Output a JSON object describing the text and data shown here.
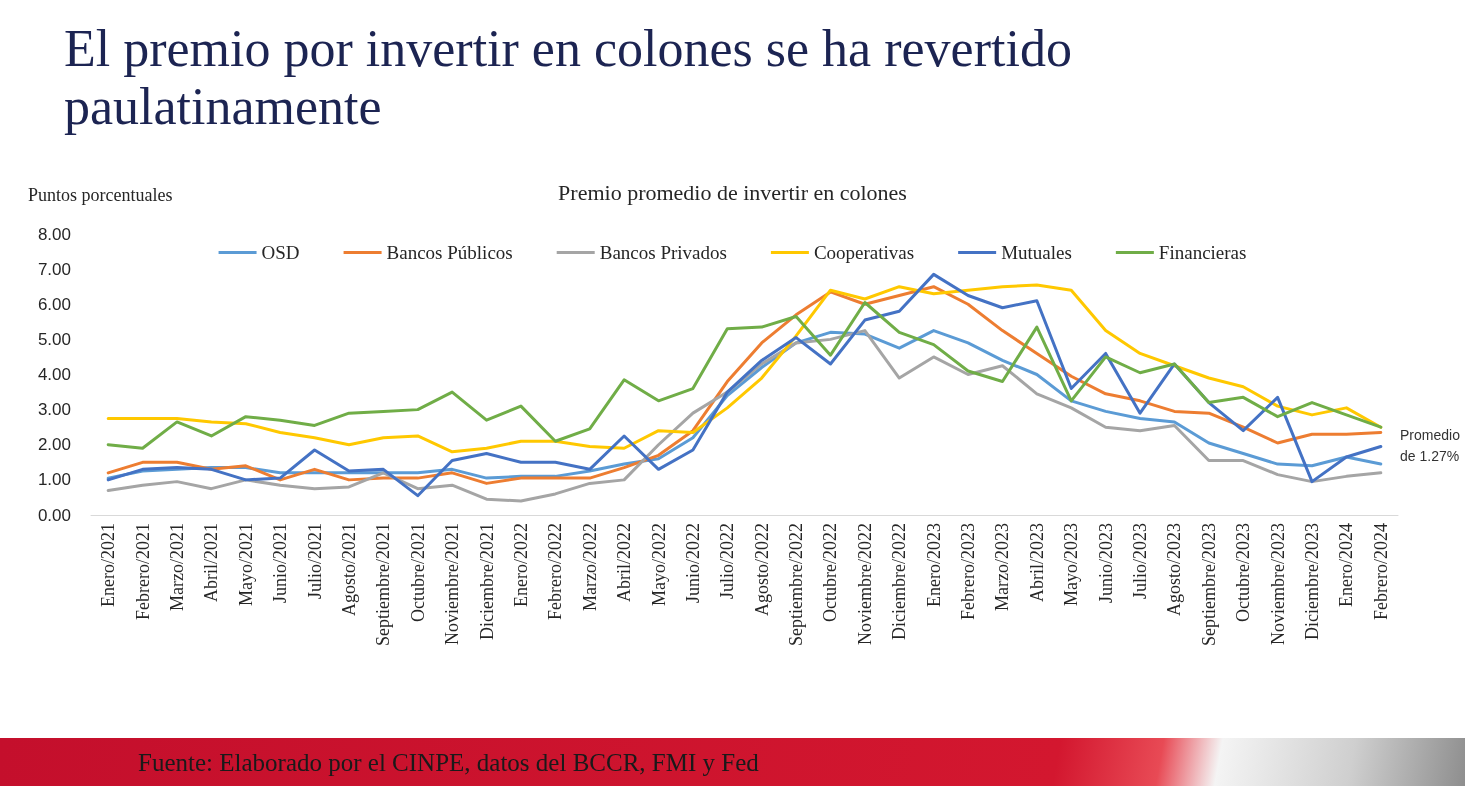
{
  "chart_data": {
    "type": "line",
    "title": "El premio por invertir en colones se ha revertido paulatinamente",
    "subtitle": "Premio promedio de invertir en colones",
    "ylabel": "Puntos porcentuales",
    "categories": [
      "Enero/2021",
      "Febrero/2021",
      "Marzo/2021",
      "Abril/2021",
      "Mayo/2021",
      "Junio/2021",
      "Julio/2021",
      "Agosto/2021",
      "Septiembre/2021",
      "Octubre/2021",
      "Noviembre/2021",
      "Diciembre/2021",
      "Enero/2022",
      "Febrero/2022",
      "Marzo/2022",
      "Abril/2022",
      "Mayo/2022",
      "Junio/2022",
      "Julio/2022",
      "Agosto/2022",
      "Septiembre/2022",
      "Octubre/2022",
      "Noviembre/2022",
      "Diciembre/2022",
      "Enero/2023",
      "Febrero/2023",
      "Marzo/2023",
      "Abril/2023",
      "Mayo/2023",
      "Junio/2023",
      "Julio/2023",
      "Agosto/2023",
      "Septiembre/2023",
      "Octubre/2023",
      "Noviembre/2023",
      "Diciembre/2023",
      "Enero/2024",
      "Febrero/2024"
    ],
    "series": [
      {
        "name": "OSD",
        "color": "#5b9bd5",
        "values": [
          1.05,
          1.25,
          1.3,
          1.35,
          1.35,
          1.2,
          1.2,
          1.2,
          1.2,
          1.2,
          1.3,
          1.05,
          1.1,
          1.1,
          1.25,
          1.45,
          1.6,
          2.2,
          3.4,
          4.2,
          4.9,
          5.2,
          5.15,
          4.75,
          5.25,
          4.9,
          4.4,
          4.0,
          3.25,
          2.95,
          2.75,
          2.65,
          2.05,
          1.75,
          1.45,
          1.4,
          1.65,
          1.45
        ]
      },
      {
        "name": "Bancos Públicos",
        "color": "#ed7d31",
        "values": [
          1.2,
          1.5,
          1.5,
          1.3,
          1.4,
          1.0,
          1.3,
          1.0,
          1.05,
          1.05,
          1.2,
          0.9,
          1.05,
          1.05,
          1.05,
          1.35,
          1.7,
          2.4,
          3.8,
          4.9,
          5.7,
          6.35,
          6.0,
          6.25,
          6.5,
          6.0,
          5.25,
          4.6,
          3.95,
          3.45,
          3.25,
          2.95,
          2.9,
          2.5,
          2.05,
          2.3,
          2.3,
          2.35
        ]
      },
      {
        "name": "Bancos Privados",
        "color": "#a5a5a5",
        "values": [
          0.7,
          0.85,
          0.95,
          0.75,
          1.0,
          0.85,
          0.75,
          0.8,
          1.2,
          0.75,
          0.85,
          0.45,
          0.4,
          0.6,
          0.9,
          1.0,
          2.0,
          2.9,
          3.5,
          4.3,
          4.9,
          5.0,
          5.25,
          3.9,
          4.5,
          4.0,
          4.25,
          3.45,
          3.05,
          2.5,
          2.4,
          2.55,
          1.55,
          1.55,
          1.15,
          0.95,
          1.1,
          1.2
        ]
      },
      {
        "name": "Cooperativas",
        "color": "#ffc800",
        "values": [
          2.75,
          2.75,
          2.75,
          2.65,
          2.6,
          2.35,
          2.2,
          2.0,
          2.2,
          2.25,
          1.8,
          1.9,
          2.1,
          2.1,
          1.95,
          1.9,
          2.4,
          2.35,
          3.05,
          3.9,
          5.1,
          6.4,
          6.15,
          6.5,
          6.3,
          6.4,
          6.5,
          6.55,
          6.4,
          5.25,
          4.6,
          4.25,
          3.9,
          3.65,
          3.1,
          2.85,
          3.05,
          2.5
        ]
      },
      {
        "name": "Mutuales",
        "color": "#4472c4",
        "values": [
          1.0,
          1.3,
          1.35,
          1.3,
          1.0,
          1.05,
          1.85,
          1.25,
          1.3,
          0.55,
          1.55,
          1.75,
          1.5,
          1.5,
          1.3,
          2.25,
          1.3,
          1.85,
          3.5,
          4.4,
          5.05,
          4.3,
          5.55,
          5.8,
          6.85,
          6.25,
          5.9,
          6.1,
          3.6,
          4.6,
          2.9,
          4.3,
          3.2,
          2.4,
          3.35,
          0.95,
          1.65,
          1.95
        ]
      },
      {
        "name": "Financieras",
        "color": "#70ad47",
        "values": [
          2.0,
          1.9,
          2.65,
          2.25,
          2.8,
          2.7,
          2.55,
          2.9,
          2.95,
          3.0,
          3.5,
          2.7,
          3.1,
          2.1,
          2.45,
          3.85,
          3.25,
          3.6,
          5.3,
          5.35,
          5.65,
          4.55,
          6.05,
          5.2,
          4.85,
          4.1,
          3.8,
          5.35,
          3.25,
          4.5,
          4.05,
          4.3,
          3.2,
          3.35,
          2.8,
          3.2,
          2.85,
          2.5
        ]
      }
    ],
    "ylim": [
      0,
      8
    ],
    "yticks": [
      {
        "value": 0,
        "label": "0.00"
      },
      {
        "value": 1,
        "label": "1.00"
      },
      {
        "value": 2,
        "label": "2.00"
      },
      {
        "value": 3,
        "label": "3.00"
      },
      {
        "value": 4,
        "label": "4.00"
      },
      {
        "value": 5,
        "label": "5.00"
      },
      {
        "value": 6,
        "label": "6.00"
      },
      {
        "value": 7,
        "label": "7.00"
      },
      {
        "value": 8,
        "label": "8.00"
      }
    ],
    "legend": "top",
    "marker": "none",
    "line_style": "solid",
    "annotations": [
      "Promedio de 1.27%",
      "Fuente: Elaborado por el CINPE, datos del BCCR, FMI y Fed"
    ]
  }
}
